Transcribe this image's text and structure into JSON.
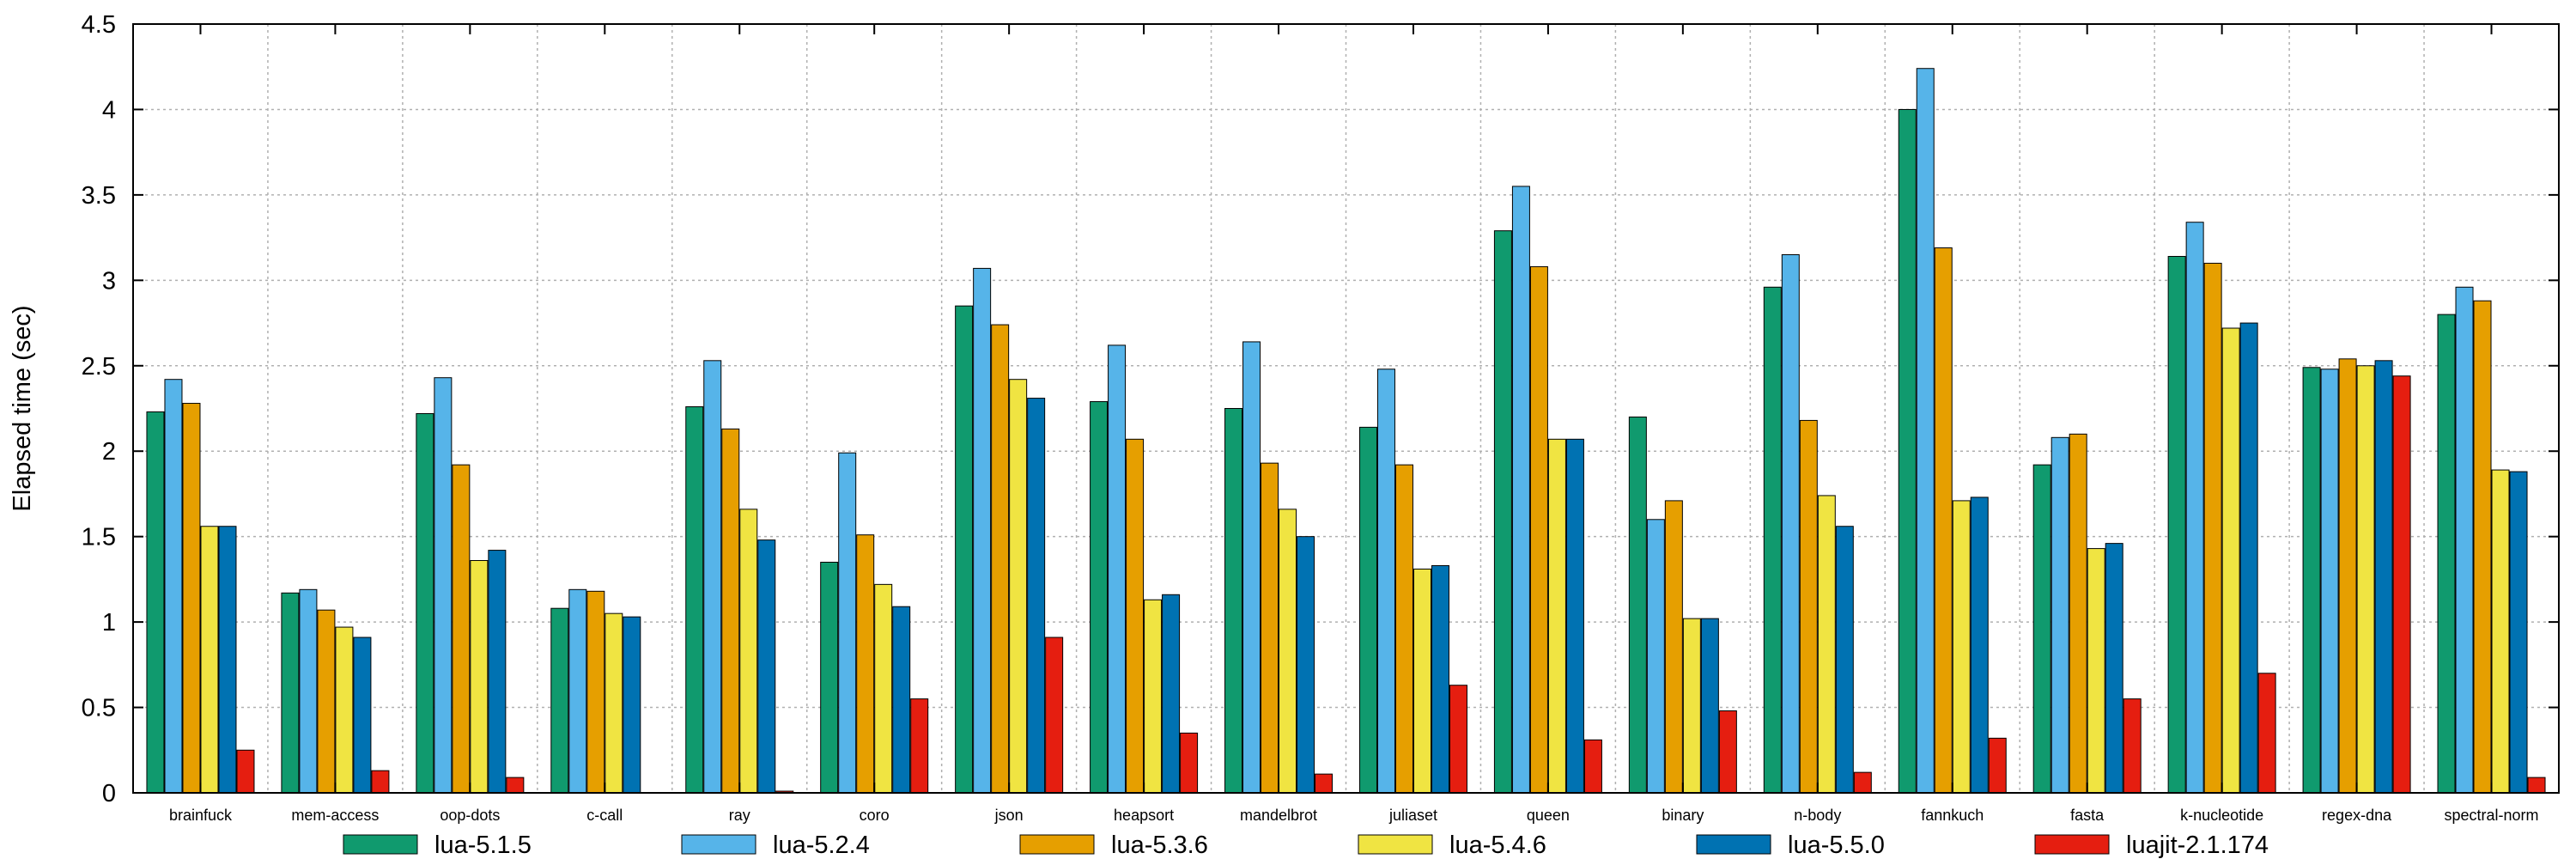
{
  "chart_data": {
    "type": "bar",
    "title": "",
    "xlabel": "",
    "ylabel": "Elapsed time (sec)",
    "ylim": [
      0,
      4.5
    ],
    "yticks": [
      "0",
      "0.5",
      "1",
      "1.5",
      "2",
      "2.5",
      "3",
      "3.5",
      "4",
      "4.5"
    ],
    "grid": true,
    "legend_position": "bottom",
    "categories": [
      "brainfuck",
      "mem-access",
      "oop-dots",
      "c-call",
      "ray",
      "coro",
      "json",
      "heapsort",
      "mandelbrot",
      "juliaset",
      "queen",
      "binary",
      "n-body",
      "fannkuch",
      "fasta",
      "k-nucleotide",
      "regex-dna",
      "spectral-norm"
    ],
    "series": [
      {
        "name": "lua-5.1.5",
        "color": "#109a6e",
        "values": [
          2.23,
          1.17,
          2.22,
          1.08,
          2.26,
          1.35,
          2.85,
          2.29,
          2.25,
          2.14,
          3.29,
          2.2,
          2.96,
          4.0,
          1.92,
          3.14,
          2.49,
          2.8
        ]
      },
      {
        "name": "lua-5.2.4",
        "color": "#56b4e9",
        "values": [
          2.42,
          1.19,
          2.43,
          1.19,
          2.53,
          1.99,
          3.07,
          2.62,
          2.64,
          2.48,
          3.55,
          1.6,
          3.15,
          4.24,
          2.08,
          3.34,
          2.48,
          2.96
        ]
      },
      {
        "name": "lua-5.3.6",
        "color": "#e69f00",
        "values": [
          2.28,
          1.07,
          1.92,
          1.18,
          2.13,
          1.51,
          2.74,
          2.07,
          1.93,
          1.92,
          3.08,
          1.71,
          2.18,
          3.19,
          2.1,
          3.1,
          2.54,
          2.88
        ]
      },
      {
        "name": "lua-5.4.6",
        "color": "#f0e442",
        "values": [
          1.56,
          0.97,
          1.36,
          1.05,
          1.66,
          1.22,
          2.42,
          1.13,
          1.66,
          1.31,
          2.07,
          1.02,
          1.74,
          1.71,
          1.43,
          2.72,
          2.5,
          1.89
        ]
      },
      {
        "name": "lua-5.5.0",
        "color": "#0072b2",
        "values": [
          1.56,
          0.91,
          1.42,
          1.03,
          1.48,
          1.09,
          2.31,
          1.16,
          1.5,
          1.33,
          2.07,
          1.02,
          1.56,
          1.73,
          1.46,
          2.75,
          2.53,
          1.88
        ]
      },
      {
        "name": "luajit-2.1.174",
        "color": "#e51e10",
        "values": [
          0.25,
          0.13,
          0.09,
          0.0,
          0.01,
          0.55,
          0.91,
          0.35,
          0.11,
          0.63,
          0.31,
          0.48,
          0.12,
          0.32,
          0.55,
          0.7,
          2.44,
          0.09
        ]
      }
    ]
  }
}
